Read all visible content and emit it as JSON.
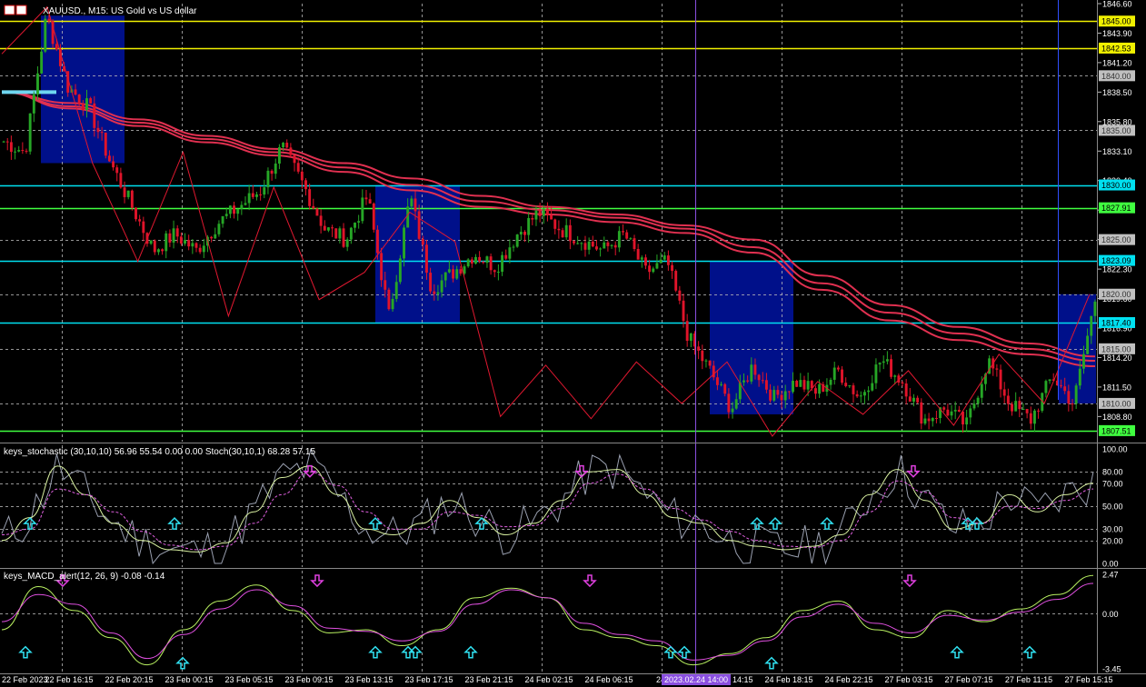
{
  "header": {
    "symbol_line": "XAUUSD., M15:  US Gold vs US dollar"
  },
  "panes": {
    "main": {
      "price_axis_labels": [
        "1846.60",
        "1843.90",
        "1841.20",
        "1838.50",
        "1835.80",
        "1833.10",
        "1830.40",
        "1827.70",
        "1825.00",
        "1822.30",
        "1819.60",
        "1816.90",
        "1814.20",
        "1811.50",
        "1808.80"
      ],
      "horizontal_levels": [
        {
          "price": 1845.0,
          "color": "#f0f000",
          "label": "1845.00"
        },
        {
          "price": 1842.53,
          "color": "#f0f000",
          "label": "1842.53"
        },
        {
          "price": 1830.0,
          "color": "#00e0f0",
          "label": "1830.00"
        },
        {
          "price": 1827.91,
          "color": "#40ff40",
          "label": "1827.91"
        },
        {
          "price": 1823.09,
          "color": "#00e0f0",
          "label": "1823.09"
        },
        {
          "price": 1817.4,
          "color": "#00e0f0",
          "label": "1817.40"
        },
        {
          "price": 1807.51,
          "color": "#40ff40",
          "label": "1807.51"
        }
      ],
      "dashed_levels": [
        {
          "price": 1840.0,
          "label": "1840.00"
        },
        {
          "price": 1835.0,
          "label": "1835.00"
        },
        {
          "price": 1825.0,
          "label": "1825.00"
        },
        {
          "price": 1820.0,
          "label": "1820.00"
        },
        {
          "price": 1815.0,
          "label": "1815.00"
        },
        {
          "price": 1810.0,
          "label": "1810.00"
        }
      ]
    },
    "stoch": {
      "title": "keys_stochastic (30,10,10) 56.96 55.54 0.00 0.00 Stoch(30,10,1) 68.28 57.15",
      "axis_labels": [
        "100.00",
        "80.00",
        "70.00",
        "50.00",
        "30.00",
        "20.00",
        "0.00"
      ]
    },
    "macd": {
      "title": "keys_MACD_alert(12, 26, 9) -0.08 -0.14",
      "axis_labels": [
        "2.47",
        "0.00",
        "-3.45"
      ]
    }
  },
  "time_axis": {
    "labels": [
      "22 Feb 2023",
      "22 Feb 16:15",
      "22 Feb 20:15",
      "23 Feb 00:15",
      "23 Feb 05:15",
      "23 Feb 09:15",
      "23 Feb 13:15",
      "23 Feb 17:15",
      "23 Feb 21:15",
      "24 Feb 02:15",
      "24 Feb 06:15",
      "24 Feb",
      "24 Feb 14:15",
      "24 Feb 18:15",
      "24 Feb 22:15",
      "27 Feb 03:15",
      "27 Feb 07:15",
      "27 Feb 11:15",
      "27 Feb 15:15"
    ],
    "highlight_label": "2023.02.24 14:00"
  },
  "chart_data": {
    "type": "candlestick",
    "symbol": "XAUUSD.",
    "timeframe": "M15",
    "description": "US Gold vs US dollar",
    "price_range": [
      1806.5,
      1846.6
    ],
    "x_labels": [
      "22 Feb 2023",
      "22 Feb 16:15",
      "22 Feb 20:15",
      "23 Feb 00:15",
      "23 Feb 05:15",
      "23 Feb 09:15",
      "23 Feb 13:15",
      "23 Feb 17:15",
      "23 Feb 21:15",
      "24 Feb 02:15",
      "24 Feb 06:15",
      "24 Feb",
      "24 Feb 14:15",
      "24 Feb 18:15",
      "24 Feb 22:15",
      "27 Feb 03:15",
      "27 Feb 07:15",
      "27 Feb 11:15",
      "27 Feb 15:15"
    ],
    "price_path_anchors": [
      1834.0,
      1833.0,
      1845.5,
      1839.0,
      1837.0,
      1832.0,
      1828.0,
      1824.0,
      1825.5,
      1824.0,
      1826.5,
      1828.0,
      1829.5,
      1833.5,
      1830.0,
      1826.0,
      1825.0,
      1829.0,
      1818.0,
      1829.0,
      1820.5,
      1822.0,
      1823.7,
      1822.5,
      1825.5,
      1827.5,
      1826.0,
      1825.0,
      1824.0,
      1825.5,
      1822.0,
      1823.0,
      1816.0,
      1813.0,
      1809.5,
      1813.5,
      1810.5,
      1812.0,
      1811.0,
      1813.0,
      1810.5,
      1814.0,
      1812.0,
      1808.5,
      1809.5,
      1808.0,
      1814.0,
      1810.0,
      1808.5,
      1812.5,
      1810.0,
      1819.5
    ],
    "moving_averages": [
      {
        "name": "MA1",
        "points": [
          1838.5,
          1837.5,
          1836.0,
          1834.5,
          1833.3,
          1832.0,
          1830.6,
          1829.0,
          1828.0,
          1827.3,
          1826.3,
          1825.0,
          1821.7,
          1819.0,
          1817.0,
          1815.5,
          1814.3
        ]
      },
      {
        "name": "MA2",
        "points": [
          1838.5,
          1837.2,
          1835.7,
          1834.2,
          1833.0,
          1831.6,
          1830.0,
          1828.5,
          1827.7,
          1827.0,
          1826.0,
          1824.3,
          1821.0,
          1818.3,
          1816.4,
          1815.0,
          1813.9
        ]
      },
      {
        "name": "MA3",
        "points": [
          1838.5,
          1837.0,
          1835.4,
          1833.9,
          1832.7,
          1831.2,
          1829.5,
          1828.0,
          1827.3,
          1826.6,
          1825.6,
          1823.8,
          1820.4,
          1817.6,
          1815.8,
          1814.5,
          1813.4
        ]
      }
    ],
    "zigzag": [
      1842.0,
      1846.3,
      1832.0,
      1823.0,
      1833.0,
      1818.0,
      1829.8,
      1819.5,
      1822.0,
      1827.5,
      1824.8,
      1808.8,
      1813.5,
      1808.6,
      1813.8,
      1810.0,
      1813.8,
      1807.0,
      1812.0,
      1809.0,
      1813.0,
      1808.0,
      1814.5,
      1810.0,
      1820.0
    ],
    "zones": [
      {
        "top": 1845.5,
        "bottom": 1832.0
      },
      {
        "top": 1830.0,
        "bottom": 1817.4
      },
      {
        "top": 1823.0,
        "bottom": 1809.0
      },
      {
        "top": 1820.0,
        "bottom": 1810.0
      }
    ],
    "stochastic": {
      "range": [
        0,
        100
      ],
      "levels": [
        80,
        70,
        50,
        30,
        20
      ],
      "main_anchors": [
        20,
        40,
        85,
        60,
        35,
        20,
        12,
        10,
        18,
        45,
        75,
        85,
        60,
        30,
        25,
        35,
        55,
        40,
        25,
        35,
        55,
        80,
        82,
        60,
        40,
        35,
        20,
        15,
        12,
        15,
        25,
        60,
        82,
        55,
        30,
        35,
        60,
        45,
        60,
        70
      ],
      "signal_anchors": [
        25,
        30,
        65,
        60,
        45,
        28,
        16,
        12,
        15,
        35,
        60,
        80,
        68,
        45,
        30,
        30,
        45,
        42,
        32,
        33,
        48,
        70,
        78,
        65,
        48,
        38,
        28,
        20,
        15,
        14,
        20,
        45,
        72,
        62,
        40,
        35,
        50,
        48,
        55,
        65
      ],
      "signal_arrows_up": [
        "22 Feb 2023",
        "22 Feb 20:15",
        "23 Feb 13:15",
        "23 Feb 21:15",
        "24 Feb 18:15",
        "24 Feb 18:15",
        "24 Feb 22:15",
        "27 Feb 07:15"
      ],
      "signal_arrows_down": [
        "23 Feb 09:15",
        "24 Feb 06:15",
        "27 Feb 03:15"
      ]
    },
    "macd": {
      "range": [
        -3.45,
        2.47
      ],
      "main_anchors": [
        -1.0,
        1.7,
        0.2,
        -1.5,
        -3.2,
        -1.0,
        0.8,
        1.8,
        0.2,
        -1.2,
        -1.0,
        -2.0,
        -1.0,
        1.0,
        1.6,
        1.0,
        -1.0,
        -1.5,
        -2.0,
        -3.2,
        -2.5,
        -1.5,
        0.2,
        0.8,
        -1.0,
        -1.5,
        0.2,
        -0.5,
        0.3,
        1.2,
        2.4
      ],
      "signal_anchors": [
        -0.5,
        1.2,
        0.6,
        -1.2,
        -2.8,
        -1.3,
        0.3,
        1.5,
        0.5,
        -0.9,
        -1.1,
        -1.7,
        -1.1,
        0.6,
        1.5,
        1.0,
        -0.6,
        -1.3,
        -1.7,
        -2.9,
        -2.6,
        -1.7,
        -0.2,
        0.6,
        -0.6,
        -1.2,
        -0.1,
        -0.4,
        0.1,
        0.9,
        1.9
      ]
    }
  }
}
